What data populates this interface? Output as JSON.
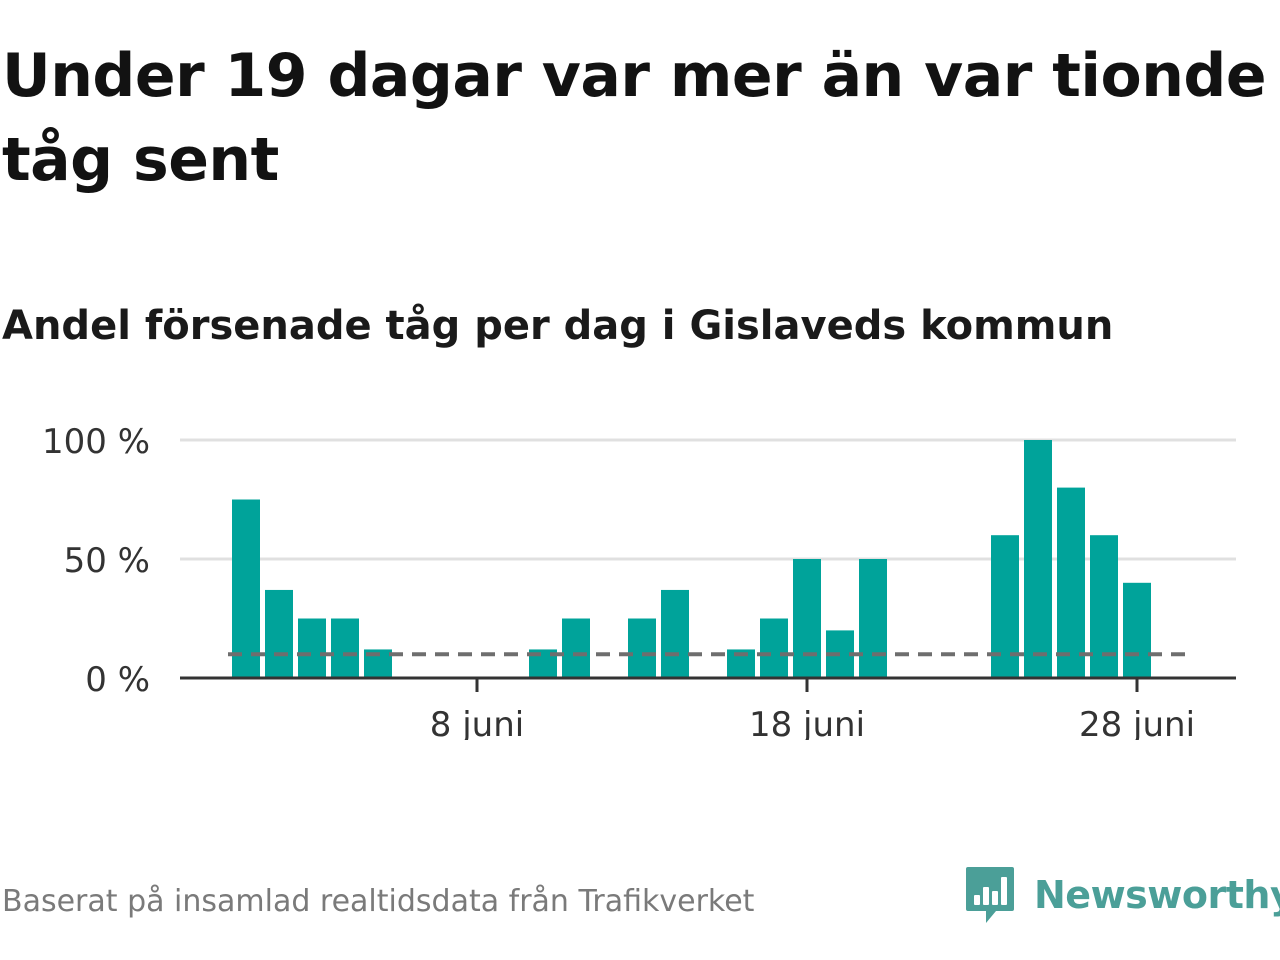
{
  "title": "Under 19 dagar var mer än var tionde tåg sent",
  "subtitle": "Andel försenade tåg per dag i Gislaveds kommun",
  "footer": {
    "source": "Baserat på insamlad realtidsdata från Trafikverket",
    "brand": "Newsworthy",
    "brand_icon": "newsworthy-logo-icon"
  },
  "colors": {
    "bar": "#00a39a",
    "reference_line": "#6e6e6e",
    "grid": "#e0e0e0",
    "axis": "#333333",
    "brand": "#4b9f98"
  },
  "chart_data": {
    "type": "bar",
    "x": [
      "2024-06-01",
      "2024-06-02",
      "2024-06-03",
      "2024-06-04",
      "2024-06-05",
      "2024-06-06",
      "2024-06-07",
      "2024-06-08",
      "2024-06-09",
      "2024-06-10",
      "2024-06-11",
      "2024-06-12",
      "2024-06-13",
      "2024-06-14",
      "2024-06-15",
      "2024-06-16",
      "2024-06-17",
      "2024-06-18",
      "2024-06-19",
      "2024-06-20",
      "2024-06-21",
      "2024-06-22",
      "2024-06-23",
      "2024-06-24",
      "2024-06-25",
      "2024-06-26",
      "2024-06-27",
      "2024-06-28"
    ],
    "values": [
      75,
      37,
      25,
      25,
      12,
      0,
      0,
      0,
      0,
      12,
      25,
      0,
      25,
      37,
      0,
      12,
      25,
      50,
      20,
      50,
      0,
      0,
      0,
      60,
      100,
      80,
      60,
      40
    ],
    "reference_line": {
      "value": 10,
      "style": "dashed"
    },
    "ylim": [
      0,
      100
    ],
    "yticks": [
      {
        "value": 0,
        "label": "0 %"
      },
      {
        "value": 50,
        "label": "50 %"
      },
      {
        "value": 100,
        "label": "100 %"
      }
    ],
    "xticks": [
      {
        "x": "2024-06-08",
        "label": "8 juni"
      },
      {
        "x": "2024-06-18",
        "label": "18 juni"
      },
      {
        "x": "2024-06-28",
        "label": "28 juni"
      }
    ],
    "xlabel": "",
    "ylabel": "",
    "grid": true,
    "legend": "none"
  }
}
